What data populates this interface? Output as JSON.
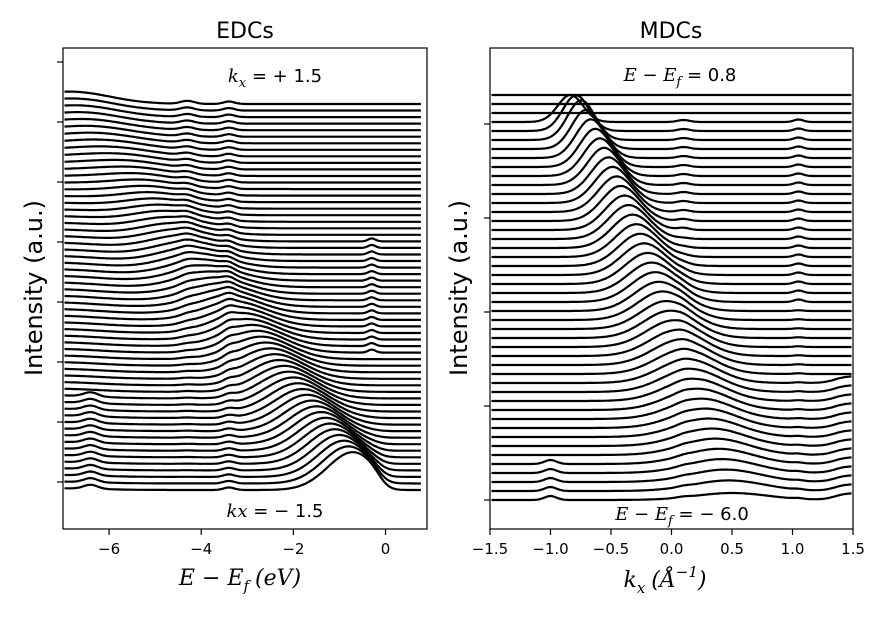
{
  "chart_data": [
    {
      "type": "line",
      "title": "EDCs",
      "xlabel": "E − E_f (eV)",
      "xlabel_main": "E − E",
      "xlabel_sub": "f",
      "xlabel_units": "(eV)",
      "ylabel": "Intensity (a.u.)",
      "xlim": [
        -7.0,
        0.9
      ],
      "xticks": [
        -6,
        -4,
        -2,
        0
      ],
      "xtick_labels": [
        "−6",
        "−4",
        "−2",
        "0"
      ],
      "yticks_labeled": false,
      "curve_count": 60,
      "top_annotation": "k_x = +1.5",
      "top_annotation_main": "k",
      "top_annotation_sub": "x",
      "top_annotation_rest": " = + 1.5",
      "bottom_annotation": "kx = − 1.5",
      "bottom_annotation_main": "kx",
      "bottom_annotation_rest": " = − 1.5",
      "dispersion": {
        "kx_range": [
          -1.5,
          1.5
        ],
        "peak_energy_range": [
          -0.7,
          -6.5
        ]
      },
      "color": "#000000"
    },
    {
      "type": "line",
      "title": "MDCs",
      "xlabel": "k_x (Å^−1)",
      "xlabel_main": "k",
      "xlabel_sub": "x",
      "xlabel_units": "(Å",
      "xlabel_sup": "−1",
      "xlabel_close": ")",
      "ylabel": "Intensity (a.u.)",
      "xlim": [
        -1.5,
        1.5
      ],
      "xticks": [
        -1.5,
        -1.0,
        -0.5,
        0.0,
        0.5,
        1.0,
        1.5
      ],
      "xtick_labels": [
        "−1.5",
        "−1.0",
        "−0.5",
        "0.0",
        "0.5",
        "1.0",
        "1.5"
      ],
      "yticks_labeled": false,
      "curve_count": 46,
      "top_annotation": "E − E_f = 0.8",
      "top_annotation_main": "E − E",
      "top_annotation_sub": "f",
      "top_annotation_rest": " = 0.8",
      "bottom_annotation": "E − E_f = −6.0",
      "bottom_annotation_main": "E − E",
      "bottom_annotation_sub": "f",
      "bottom_annotation_rest": " = − 6.0",
      "energy_range": [
        0.8,
        -6.0
      ],
      "dispersion": {
        "peak_kx_range": [
          -0.88,
          0.5
        ]
      },
      "color": "#000000"
    }
  ]
}
